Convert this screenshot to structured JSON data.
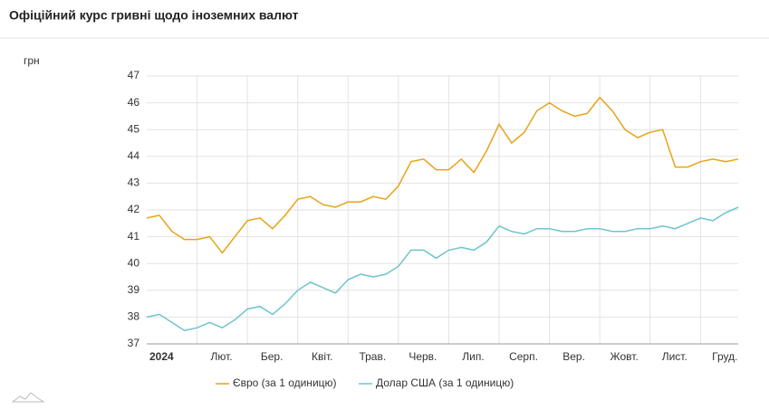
{
  "chart_data": {
    "type": "line",
    "title": "Офіційний курс гривні щодо іноземних валют",
    "y_label": "грн",
    "categories": [
      "2024",
      null,
      null,
      null,
      "Лют.",
      null,
      null,
      null,
      "Бер.",
      null,
      null,
      null,
      "Квіт.",
      null,
      null,
      null,
      "Трав.",
      null,
      null,
      null,
      "Черв.",
      null,
      null,
      null,
      "Лип.",
      null,
      null,
      null,
      "Серп.",
      null,
      null,
      null,
      "Вер.",
      null,
      null,
      null,
      "Жовт.",
      null,
      null,
      null,
      "Лист.",
      null,
      null,
      null,
      "Груд.",
      null,
      null,
      null
    ],
    "series": [
      {
        "name": "Євро (за 1 одиницю)",
        "color": "#e8a317",
        "values": [
          41.7,
          41.8,
          41.2,
          40.9,
          40.9,
          41.0,
          40.4,
          41.0,
          41.6,
          41.7,
          41.3,
          41.8,
          42.4,
          42.5,
          42.2,
          42.1,
          42.3,
          42.3,
          42.5,
          42.4,
          42.9,
          43.8,
          43.9,
          43.5,
          43.5,
          43.9,
          43.4,
          44.2,
          45.2,
          44.5,
          44.9,
          45.7,
          46.0,
          45.7,
          45.5,
          45.6,
          46.2,
          45.7,
          45.0,
          44.7,
          44.9,
          45.0,
          43.6,
          43.6,
          43.8,
          43.9,
          43.8,
          43.9
        ]
      },
      {
        "name": "Долар США (за 1 одиницю)",
        "color": "#6cc5cc",
        "values": [
          38.0,
          38.1,
          37.8,
          37.5,
          37.6,
          37.8,
          37.6,
          37.9,
          38.3,
          38.4,
          38.1,
          38.5,
          39.0,
          39.3,
          39.1,
          38.9,
          39.4,
          39.6,
          39.5,
          39.6,
          39.9,
          40.5,
          40.5,
          40.2,
          40.5,
          40.6,
          40.5,
          40.8,
          41.4,
          41.2,
          41.1,
          41.3,
          41.3,
          41.2,
          41.2,
          41.3,
          41.3,
          41.2,
          41.2,
          41.3,
          41.3,
          41.4,
          41.3,
          41.5,
          41.7,
          41.6,
          41.9,
          42.1
        ]
      }
    ],
    "ylim": [
      37,
      47
    ],
    "yticks": [
      37,
      38,
      39,
      40,
      41,
      42,
      43,
      44,
      45,
      46,
      47
    ],
    "grid": true
  }
}
